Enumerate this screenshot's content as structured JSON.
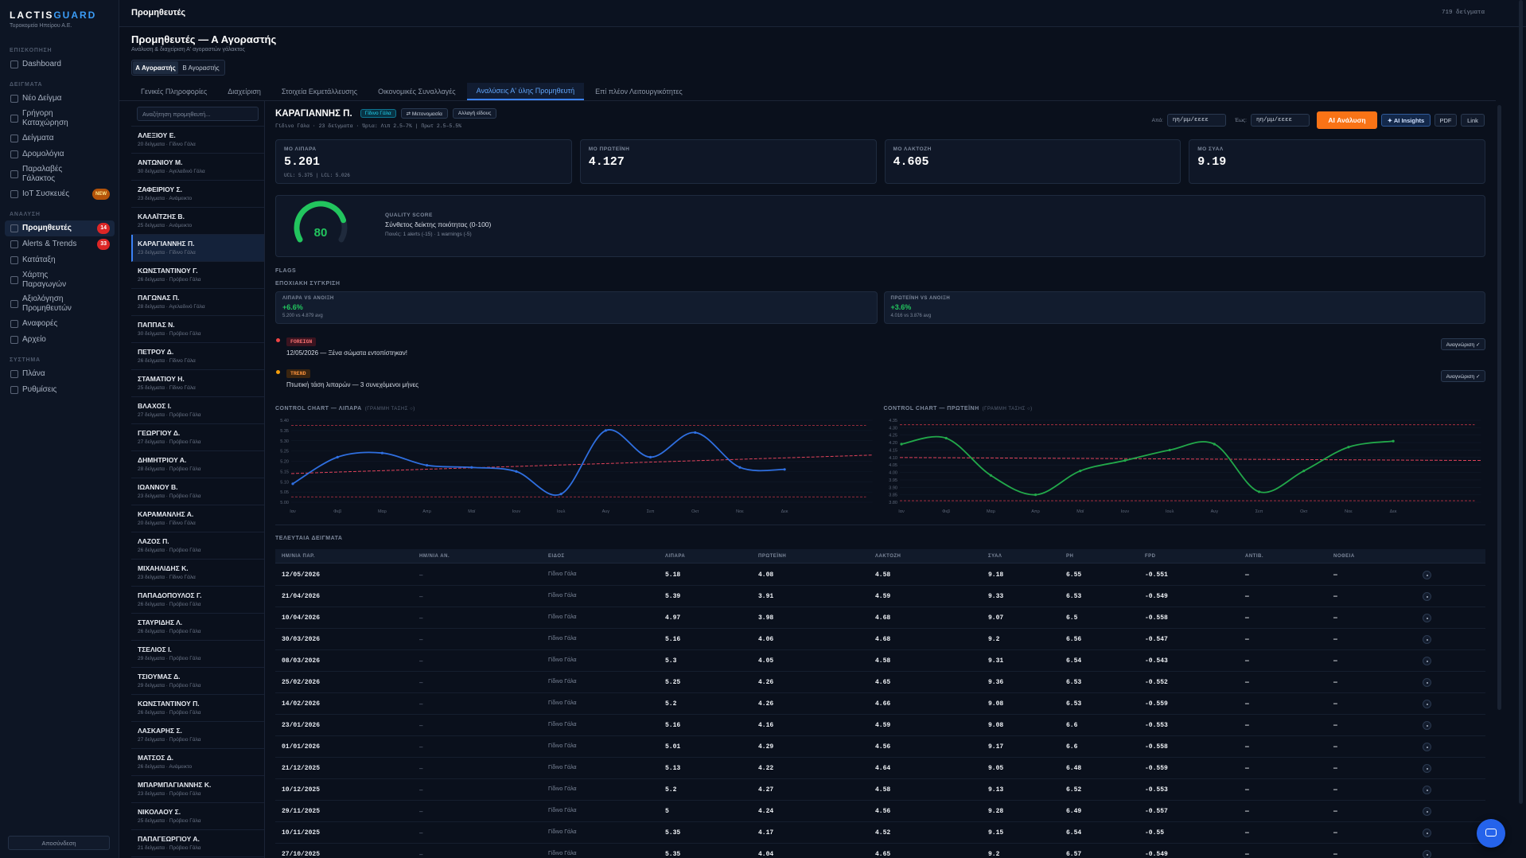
{
  "sidebar": {
    "brand_a": "LACTIS",
    "brand_b": "GUARD",
    "company": "Τυροκομεία Ηπείρου Α.Ε.",
    "sections": [
      {
        "title": "ΕΠΙΣΚΟΠΗΣΗ",
        "items": [
          {
            "label": "Dashboard"
          }
        ]
      },
      {
        "title": "ΔΕΙΓΜΑΤΑ",
        "items": [
          {
            "label": "Νέο Δείγμα"
          },
          {
            "label": "Γρήγορη Καταχώρηση"
          },
          {
            "label": "Δείγματα"
          },
          {
            "label": "Δρομολόγια"
          },
          {
            "label": "Παραλαβές Γάλακτος"
          },
          {
            "label": "IoT Συσκευές",
            "badge": "NEW"
          }
        ]
      },
      {
        "title": "ΑΝΑΛΥΣΗ",
        "items": [
          {
            "label": "Προμηθευτές",
            "badge": "14"
          },
          {
            "label": "Alerts & Trends",
            "badge": "33"
          },
          {
            "label": "Κατάταξη"
          },
          {
            "label": "Χάρτης Παραγωγών"
          },
          {
            "label": "Αξιολόγηση Προμηθευτών"
          },
          {
            "label": "Αναφορές"
          },
          {
            "label": "Αρχείο"
          }
        ]
      },
      {
        "title": "ΣΥΣΤΗΜΑ",
        "items": [
          {
            "label": "Πλάνα"
          },
          {
            "label": "Ρυθμίσεις"
          }
        ]
      }
    ],
    "logout": "Αποσύνδεση"
  },
  "topbar": {
    "title": "Προμηθευτές",
    "count": "719 δείγματα"
  },
  "header": {
    "title": "Προμηθευτές — Α Αγοραστής",
    "subtitle": "Ανάλυση & διαχείριση Α' αγοραστών γάλακτος",
    "buyer_tabs": [
      "Α Αγοραστής",
      "Β Αγοραστής"
    ]
  },
  "tabs": [
    "Γενικές Πληροφορίες",
    "Διαχείριση",
    "Στοιχεία Εκμετάλλευσης",
    "Οικονομικές Συναλλαγές",
    "Αναλύσεις Α' ύλης Προμηθευτή",
    "Επί πλέον Λειτουργικότητες"
  ],
  "supplier_list": {
    "search_placeholder": "Αναζήτηση προμηθευτή...",
    "items": [
      {
        "name": "ΑΛΕΞΙΟΥ Ε.",
        "meta": "20 δείγματα · Γίδινο Γάλα"
      },
      {
        "name": "ΑΝΤΩΝΙΟΥ Μ.",
        "meta": "30 δείγματα · Αγελαδινό Γάλα"
      },
      {
        "name": "ΖΑΦΕΙΡΙΟΥ Σ.",
        "meta": "23 δείγματα · Ανάμεικτο"
      },
      {
        "name": "ΚΑΛΑΪΤΖΗΣ Β.",
        "meta": "25 δείγματα · Ανάμεικτο"
      },
      {
        "name": "ΚΑΡΑΓΙΑΝΝΗΣ Π.",
        "meta": "23 δείγματα · Γίδινο Γάλα"
      },
      {
        "name": "ΚΩΝΣΤΑΝΤΙΝΟΥ Γ.",
        "meta": "26 δείγματα · Πρόβειο Γάλα"
      },
      {
        "name": "ΠΑΓΩΝΑΣ Π.",
        "meta": "28 δείγματα · Αγελαδινό Γάλα"
      },
      {
        "name": "ΠΑΠΠΑΣ Ν.",
        "meta": "30 δείγματα · Πρόβειο Γάλα"
      },
      {
        "name": "ΠΕΤΡΟΥ Δ.",
        "meta": "26 δείγματα · Γίδινο Γάλα"
      },
      {
        "name": "ΣΤΑΜΑΤΙΟΥ Η.",
        "meta": "25 δείγματα · Γίδινο Γάλα"
      },
      {
        "name": "ΒΛΑΧΟΣ Ι.",
        "meta": "27 δείγματα · Πρόβειο Γάλα"
      },
      {
        "name": "ΓΕΩΡΓΙΟΥ Δ.",
        "meta": "27 δείγματα · Πρόβειο Γάλα"
      },
      {
        "name": "ΔΗΜΗΤΡΙΟΥ Α.",
        "meta": "28 δείγματα · Πρόβειο Γάλα"
      },
      {
        "name": "ΙΩΑΝΝΟΥ Β.",
        "meta": "23 δείγματα · Πρόβειο Γάλα"
      },
      {
        "name": "ΚΑΡΑΜΑΝΛΗΣ Α.",
        "meta": "20 δείγματα · Γίδινο Γάλα"
      },
      {
        "name": "ΛΑΖΟΣ Π.",
        "meta": "26 δείγματα · Πρόβειο Γάλα"
      },
      {
        "name": "ΜΙΧΑΗΛΙΔΗΣ Κ.",
        "meta": "23 δείγματα · Γίδινο Γάλα"
      },
      {
        "name": "ΠΑΠΑΔΟΠΟΥΛΟΣ Γ.",
        "meta": "26 δείγματα · Πρόβειο Γάλα"
      },
      {
        "name": "ΣΤΑΥΡΙΔΗΣ Λ.",
        "meta": "26 δείγματα · Πρόβειο Γάλα"
      },
      {
        "name": "ΤΣΕΛΙΟΣ Ι.",
        "meta": "29 δείγματα · Πρόβειο Γάλα"
      },
      {
        "name": "ΤΣΙΟΥΜΑΣ Δ.",
        "meta": "29 δείγματα · Πρόβειο Γάλα"
      },
      {
        "name": "ΚΩΝΣΤΑΝΤΙΝΟΥ Π.",
        "meta": "26 δείγματα · Πρόβειο Γάλα"
      },
      {
        "name": "ΛΑΣΚΑΡΗΣ Σ.",
        "meta": "27 δείγματα · Πρόβειο Γάλα"
      },
      {
        "name": "ΜΑΤΣΟΣ Δ.",
        "meta": "26 δείγματα · Ανάμεικτο"
      },
      {
        "name": "ΜΠΑΡΜΠΑΓΙΑΝΝΗΣ Κ.",
        "meta": "23 δείγματα · Πρόβειο Γάλα"
      },
      {
        "name": "ΝΙΚΟΛΑΟΥ Σ.",
        "meta": "25 δείγματα · Πρόβειο Γάλα"
      },
      {
        "name": "ΠΑΠΑΓΕΩΡΓΙΟΥ Α.",
        "meta": "21 δείγματα · Πρόβειο Γάλα"
      }
    ]
  },
  "supplier": {
    "name": "ΚΑΡΑΓΙΑΝΝΗΣ Π.",
    "type_badge": "Γίδινο Γάλα",
    "rename": "⇄ Μετονομασία",
    "change_type": "Αλλαγή είδους",
    "summary": "Γίδινο Γάλα · 23 δείγματα · Όρια: Λιπ 2.5–7% | Πρωτ 2.5–5.5%",
    "from_label": "Από:",
    "to_label": "Έως:",
    "date_placeholder": "ηη/μμ/εεεε",
    "actions": [
      "AI Ανάλυση",
      "✦ AI Insights",
      "PDF",
      "Link"
    ]
  },
  "kpis": [
    {
      "label": "ΜΟ ΛΙΠΑΡΑ",
      "value": "5.201",
      "note": "UCL: 5.375 | LCL: 5.026"
    },
    {
      "label": "ΜΟ ΠΡΩΤΕΪΝΗ",
      "value": "4.127"
    },
    {
      "label": "ΜΟ ΛΑΚΤΟΖΗ",
      "value": "4.605"
    },
    {
      "label": "ΜΟ ΣΥΑΛ",
      "value": "9.19"
    }
  ],
  "quality": {
    "score": 80,
    "scale": [
      0,
      100
    ],
    "title": "QUALITY SCORE",
    "subtitle": "Σύνθετος δείκτης ποιότητας (0-100)",
    "penalties": "Ποινές: 1 alerts (-15) · 1 warnings (-5)"
  },
  "flags_title": "FLAGS",
  "seasonal": {
    "title": "ΕΠΟΧΙΑΚΗ ΣΥΓΚΡΙΣΗ",
    "cards": [
      {
        "label": "ΛΙΠΑΡΑ VS ΑΝΟΙΞΗ",
        "delta": "+6.6%",
        "detail": "5.200 vs 4.879 avg"
      },
      {
        "label": "ΠΡΩΤΕΪΝΗ VS ΑΝΟΙΞΗ",
        "delta": "+3.6%",
        "detail": "4.016 vs 3.876 avg"
      }
    ]
  },
  "alerts": [
    {
      "tag": "FOREIGN",
      "text": "12/05/2026 — Ξένα σώματα εντοπίστηκαν!",
      "action": "Αναγνώριση ✓"
    },
    {
      "tag": "TREND",
      "text": "Πτωτική τάση λιπαρών — 3 συνεχόμενοι μήνες",
      "action": "Αναγνώριση ✓"
    }
  ],
  "control_charts": [
    {
      "title": "CONTROL CHART — ΛΙΠΑΡΑ",
      "subtitle": "(ΓΡΑΜΜΗ ΤΑΣΗΣ ○)",
      "color": "#2f6fe0",
      "ylim": [
        5.0,
        5.4
      ],
      "yticks": [
        {
          "value": 5.0,
          "label": "5.00"
        },
        {
          "value": 5.05,
          "label": "5.05"
        },
        {
          "value": 5.1,
          "label": "5.10"
        },
        {
          "value": 5.15,
          "label": "5.15"
        },
        {
          "value": 5.2,
          "label": "5.20"
        },
        {
          "value": 5.25,
          "label": "5.25"
        },
        {
          "value": 5.3,
          "label": "5.30"
        },
        {
          "value": 5.35,
          "label": "5.35"
        },
        {
          "value": 5.4,
          "label": "5.40"
        }
      ],
      "categories": [
        "Ιαν",
        "Φεβ",
        "Μαρ",
        "Απρ",
        "Μαϊ",
        "Ιουν",
        "Ιουλ",
        "Αυγ",
        "Σεπ",
        "Οκτ",
        "Νοε",
        "Δεκ"
      ],
      "values": [
        5.09,
        5.22,
        5.24,
        5.18,
        5.17,
        5.15,
        5.04,
        5.35,
        5.22,
        5.34,
        5.17,
        5.16
      ],
      "ucl": 5.375,
      "lcl": 5.026,
      "trend": [
        5.14,
        5.23
      ]
    },
    {
      "title": "CONTROL CHART — ΠΡΩΤΕΪΝΗ",
      "subtitle": "(ΓΡΑΜΜΗ ΤΑΣΗΣ ○)",
      "color": "#22a84a",
      "ylim": [
        3.8,
        4.35
      ],
      "yticks": [
        {
          "value": 3.8,
          "label": "3.80"
        },
        {
          "value": 3.85,
          "label": "3.85"
        },
        {
          "value": 3.9,
          "label": "3.90"
        },
        {
          "value": 3.95,
          "label": "3.95"
        },
        {
          "value": 4.0,
          "label": "4.00"
        },
        {
          "value": 4.05,
          "label": "4.05"
        },
        {
          "value": 4.1,
          "label": "4.10"
        },
        {
          "value": 4.15,
          "label": "4.15"
        },
        {
          "value": 4.2,
          "label": "4.20"
        },
        {
          "value": 4.25,
          "label": "4.25"
        },
        {
          "value": 4.3,
          "label": "4.30"
        },
        {
          "value": 4.35,
          "label": "4.35"
        }
      ],
      "categories": [
        "Ιαν",
        "Φεβ",
        "Μαρ",
        "Απρ",
        "Μαϊ",
        "Ιουν",
        "Ιουλ",
        "Αυγ",
        "Σεπ",
        "Οκτ",
        "Νοε",
        "Δεκ"
      ],
      "values": [
        4.19,
        4.23,
        3.98,
        3.85,
        4.01,
        4.08,
        4.15,
        4.19,
        3.87,
        4.01,
        4.17,
        4.21
      ],
      "ucl": 4.32,
      "lcl": 3.81,
      "trend": [
        4.1,
        4.08
      ]
    }
  ],
  "samples": {
    "title": "ΤΕΛΕΥΤΑΙΑ ΔΕΙΓΜΑΤΑ",
    "columns": [
      "ΗΜ/ΝΙΑ ΠΑΡ.",
      "ΗΜ/ΝΙΑ ΑΝ.",
      "ΕΙΔΟΣ",
      "ΛΙΠΑΡΑ",
      "ΠΡΩΤΕΪΝΗ",
      "ΛΑΚΤΟΖΗ",
      "ΣΥΑΛ",
      "PH",
      "FPD",
      "ΑΝΤΙΒ.",
      "ΝΟΘΕΙΑ"
    ],
    "rows": [
      [
        "12/05/2026",
        "–",
        "Γίδινο Γάλα",
        "5.18",
        "4.08",
        "4.58",
        "9.18",
        "6.55",
        "-0.551",
        "—",
        "—"
      ],
      [
        "21/04/2026",
        "–",
        "Γίδινο Γάλα",
        "5.39",
        "3.91",
        "4.59",
        "9.33",
        "6.53",
        "-0.549",
        "—",
        "—"
      ],
      [
        "10/04/2026",
        "–",
        "Γίδινο Γάλα",
        "4.97",
        "3.98",
        "4.68",
        "9.07",
        "6.5",
        "-0.558",
        "—",
        "—"
      ],
      [
        "30/03/2026",
        "–",
        "Γίδινο Γάλα",
        "5.16",
        "4.06",
        "4.68",
        "9.2",
        "6.56",
        "-0.547",
        "—",
        "—"
      ],
      [
        "08/03/2026",
        "–",
        "Γίδινο Γάλα",
        "5.3",
        "4.05",
        "4.58",
        "9.31",
        "6.54",
        "-0.543",
        "—",
        "—"
      ],
      [
        "25/02/2026",
        "–",
        "Γίδινο Γάλα",
        "5.25",
        "4.26",
        "4.65",
        "9.36",
        "6.53",
        "-0.552",
        "—",
        "—"
      ],
      [
        "14/02/2026",
        "–",
        "Γίδινο Γάλα",
        "5.2",
        "4.26",
        "4.66",
        "9.08",
        "6.53",
        "-0.559",
        "—",
        "—"
      ],
      [
        "23/01/2026",
        "–",
        "Γίδινο Γάλα",
        "5.16",
        "4.16",
        "4.59",
        "9.08",
        "6.6",
        "-0.553",
        "—",
        "—"
      ],
      [
        "01/01/2026",
        "–",
        "Γίδινο Γάλα",
        "5.01",
        "4.29",
        "4.56",
        "9.17",
        "6.6",
        "-0.558",
        "—",
        "—"
      ],
      [
        "21/12/2025",
        "–",
        "Γίδινο Γάλα",
        "5.13",
        "4.22",
        "4.64",
        "9.05",
        "6.48",
        "-0.559",
        "—",
        "—"
      ],
      [
        "10/12/2025",
        "–",
        "Γίδινο Γάλα",
        "5.2",
        "4.27",
        "4.58",
        "9.13",
        "6.52",
        "-0.553",
        "—",
        "—"
      ],
      [
        "29/11/2025",
        "–",
        "Γίδινο Γάλα",
        "5",
        "4.24",
        "4.56",
        "9.28",
        "6.49",
        "-0.557",
        "—",
        "—"
      ],
      [
        "10/11/2025",
        "–",
        "Γίδινο Γάλα",
        "5.35",
        "4.17",
        "4.52",
        "9.15",
        "6.54",
        "-0.55",
        "—",
        "—"
      ],
      [
        "27/10/2025",
        "–",
        "Γίδινο Γάλα",
        "5.35",
        "4.04",
        "4.65",
        "9.2",
        "6.57",
        "-0.549",
        "—",
        "—"
      ]
    ]
  }
}
